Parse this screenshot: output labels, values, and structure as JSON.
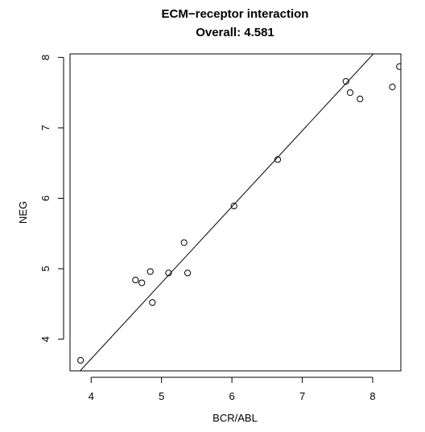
{
  "chart_data": {
    "type": "scatter",
    "title": "ECM−receptor interaction",
    "subtitle": "Overall: 4.581",
    "xlabel": "BCR/ABL",
    "ylabel": "NEG",
    "xlim": [
      3.7,
      8.4
    ],
    "ylim": [
      3.55,
      8.05
    ],
    "x_ticks": [
      4,
      5,
      6,
      7,
      8
    ],
    "y_ticks": [
      4,
      5,
      6,
      7,
      8
    ],
    "grid": false,
    "legend": "none",
    "points": [
      {
        "x": 3.85,
        "y": 3.7
      },
      {
        "x": 4.63,
        "y": 4.84
      },
      {
        "x": 4.72,
        "y": 4.8
      },
      {
        "x": 4.84,
        "y": 4.96
      },
      {
        "x": 4.87,
        "y": 4.52
      },
      {
        "x": 5.1,
        "y": 4.94
      },
      {
        "x": 5.32,
        "y": 5.37
      },
      {
        "x": 5.37,
        "y": 4.94
      },
      {
        "x": 6.03,
        "y": 5.89
      },
      {
        "x": 6.65,
        "y": 6.55
      },
      {
        "x": 7.62,
        "y": 7.66
      },
      {
        "x": 7.68,
        "y": 7.5
      },
      {
        "x": 7.82,
        "y": 7.41
      },
      {
        "x": 8.28,
        "y": 7.58
      },
      {
        "x": 8.38,
        "y": 7.87
      }
    ],
    "fit_line": {
      "intercept": -0.6,
      "slope": 1.08
    },
    "colors": {
      "points": "#000000",
      "line": "#000000",
      "axes": "#000000"
    }
  }
}
